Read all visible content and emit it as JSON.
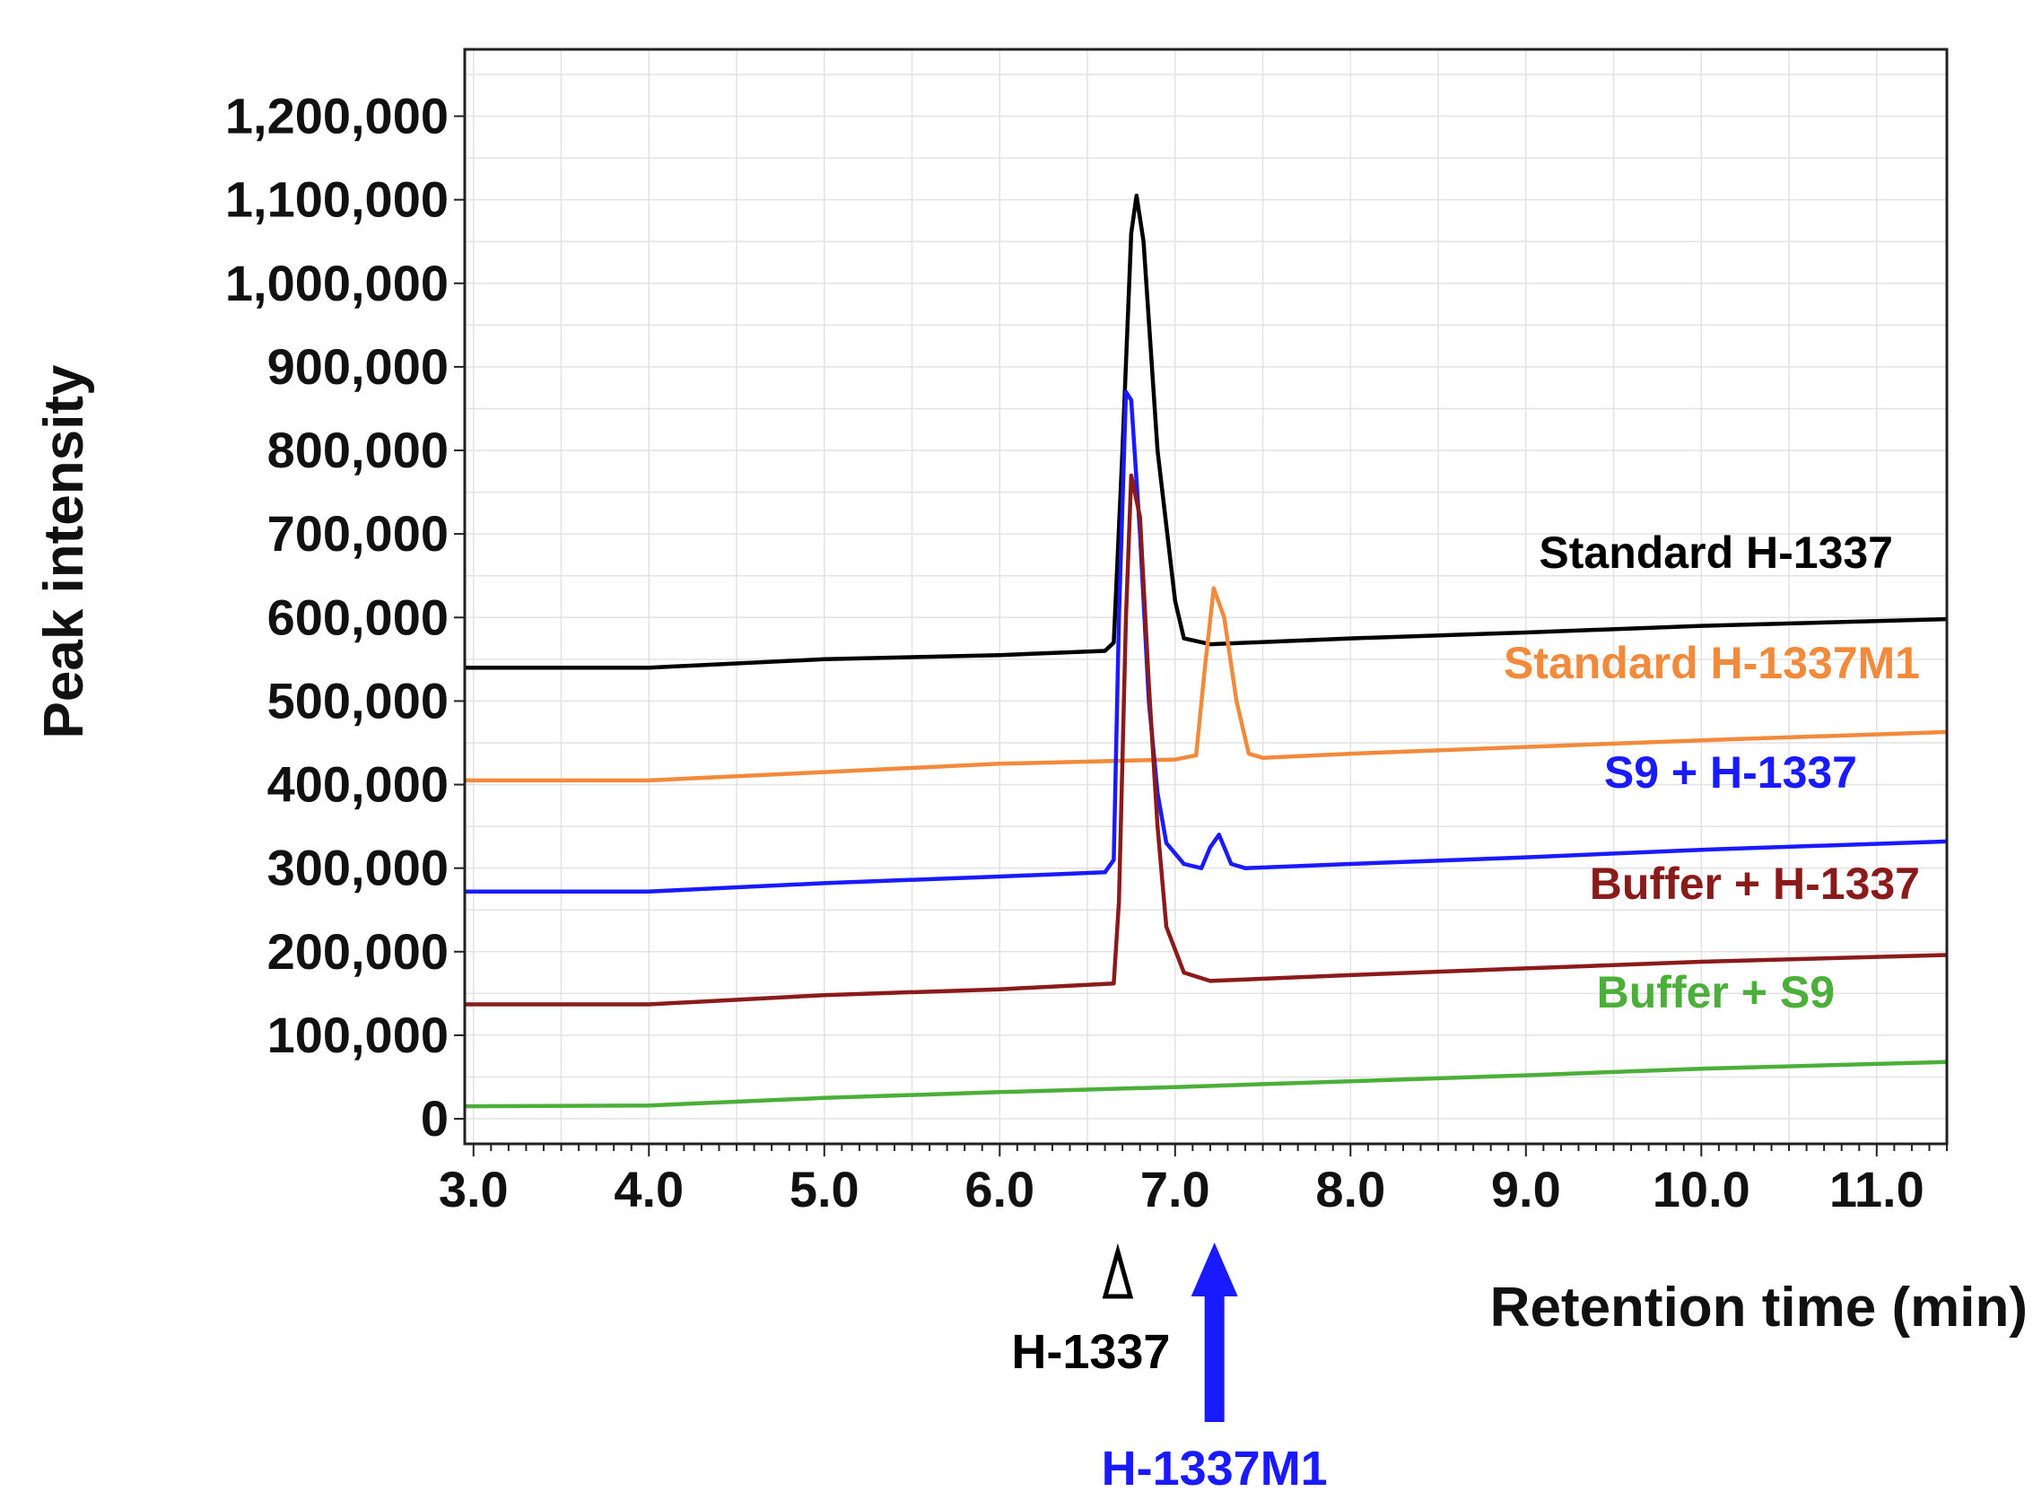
{
  "chart_data": {
    "type": "line",
    "title": "",
    "xlabel": "Retention time (min)",
    "ylabel": "Peak intensity",
    "xlim": [
      2.95,
      11.4
    ],
    "ylim": [
      -30000,
      1280000
    ],
    "grid": true,
    "x_ticks": [
      3.0,
      4.0,
      5.0,
      6.0,
      7.0,
      8.0,
      9.0,
      10.0,
      11.0
    ],
    "x_tick_labels": [
      "3.0",
      "4.0",
      "5.0",
      "6.0",
      "7.0",
      "8.0",
      "9.0",
      "10.0",
      "11.0"
    ],
    "y_ticks": [
      0,
      100000,
      200000,
      300000,
      400000,
      500000,
      600000,
      700000,
      800000,
      900000,
      1000000,
      1100000,
      1200000
    ],
    "y_tick_labels": [
      "0",
      "100,000",
      "200,000",
      "300,000",
      "400,000",
      "500,000",
      "600,000",
      "700,000",
      "800,000",
      "900,000",
      "1,000,000",
      "1,100,000",
      "1,200,000"
    ],
    "series": [
      {
        "name": "Standard H-1337",
        "color": "#000000",
        "x": [
          2.95,
          4.0,
          5.0,
          6.0,
          6.6,
          6.65,
          6.7,
          6.75,
          6.78,
          6.82,
          6.9,
          7.0,
          7.05,
          7.2,
          8.0,
          9.0,
          10.0,
          11.4
        ],
        "y": [
          540000,
          540000,
          550000,
          555000,
          560000,
          570000,
          800000,
          1060000,
          1105000,
          1050000,
          800000,
          620000,
          575000,
          568000,
          575000,
          582000,
          590000,
          598000
        ]
      },
      {
        "name": "Standard H-1337M1",
        "color": "#f28a3c",
        "x": [
          2.95,
          4.0,
          5.0,
          6.0,
          7.0,
          7.12,
          7.17,
          7.22,
          7.28,
          7.35,
          7.42,
          7.5,
          8.0,
          9.0,
          10.0,
          11.4
        ],
        "y": [
          405000,
          405000,
          415000,
          425000,
          430000,
          435000,
          540000,
          635000,
          600000,
          500000,
          437000,
          432000,
          437000,
          445000,
          453000,
          463000
        ]
      },
      {
        "name": "S9 + H-1337",
        "color": "#1a1aff",
        "x": [
          2.95,
          4.0,
          5.0,
          6.0,
          6.6,
          6.65,
          6.68,
          6.72,
          6.75,
          6.8,
          6.85,
          6.9,
          6.95,
          7.05,
          7.15,
          7.2,
          7.25,
          7.32,
          7.4,
          8.0,
          9.0,
          10.0,
          11.4
        ],
        "y": [
          272000,
          272000,
          282000,
          290000,
          295000,
          310000,
          600000,
          870000,
          860000,
          700000,
          500000,
          390000,
          330000,
          305000,
          300000,
          325000,
          340000,
          305000,
          300000,
          305000,
          313000,
          322000,
          332000
        ]
      },
      {
        "name": "Buffer + H-1337",
        "color": "#8b1a1a",
        "x": [
          2.95,
          4.0,
          5.0,
          6.0,
          6.65,
          6.68,
          6.72,
          6.75,
          6.8,
          6.85,
          6.9,
          6.95,
          7.05,
          7.2,
          8.0,
          9.0,
          10.0,
          11.4
        ],
        "y": [
          137000,
          137000,
          148000,
          155000,
          162000,
          260000,
          600000,
          770000,
          720000,
          520000,
          350000,
          230000,
          175000,
          165000,
          172000,
          180000,
          188000,
          196000
        ]
      },
      {
        "name": "Buffer + S9",
        "color": "#4caf3a",
        "x": [
          2.95,
          4.0,
          5.0,
          6.0,
          7.0,
          8.0,
          9.0,
          10.0,
          11.4
        ],
        "y": [
          15000,
          16000,
          25000,
          32000,
          38000,
          45000,
          52000,
          60000,
          68000
        ]
      }
    ],
    "legend": [
      {
        "label": "Standard H-1337",
        "color": "#000000"
      },
      {
        "label": "Standard H-1337M1",
        "color": "#f28a3c"
      },
      {
        "label": "S9 + H-1337",
        "color": "#1a1aff"
      },
      {
        "label": "Buffer + H-1337",
        "color": "#8b1a1a"
      },
      {
        "label": "Buffer + S9",
        "color": "#4caf3a"
      }
    ],
    "annotations": [
      {
        "label": "H-1337",
        "x": 6.75,
        "marker": "open-triangle",
        "color": "#000000"
      },
      {
        "label": "H-1337M1",
        "x": 7.25,
        "marker": "arrow",
        "color": "#1a1aff"
      }
    ]
  }
}
